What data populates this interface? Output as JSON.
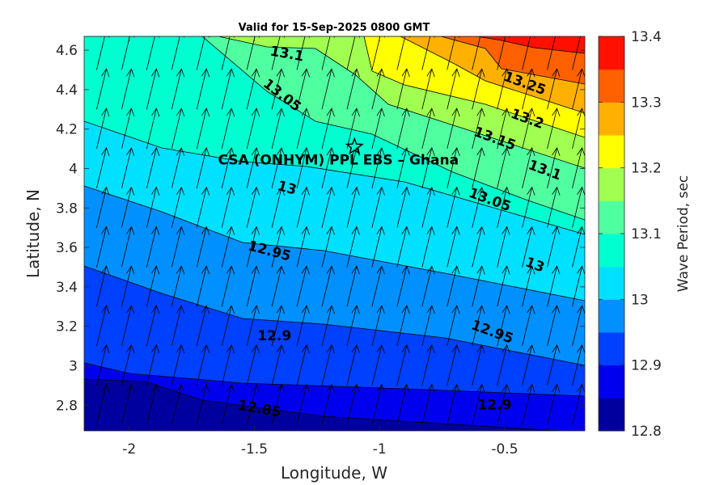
{
  "chart_data": {
    "type": "contour",
    "title": "Valid for 15-Sep-2025 0800 GMT",
    "xlabel": "Longitude, W",
    "ylabel": "Latitude, N",
    "colorbar_label": "Wave Period, sec",
    "xlim": [
      -2.18,
      -0.18
    ],
    "ylim": [
      2.67,
      4.67
    ],
    "x_ticks": [
      -2,
      -1.5,
      -1,
      -0.5
    ],
    "x_tick_labels": [
      "-2",
      "-1.5",
      "-1",
      "-0.5"
    ],
    "y_ticks": [
      2.8,
      3,
      3.2,
      3.4,
      3.6,
      3.8,
      4,
      4.2,
      4.4,
      4.6
    ],
    "y_tick_labels": [
      "2.8",
      "3",
      "3.2",
      "3.4",
      "3.6",
      "3.8",
      "4",
      "4.2",
      "4.4",
      "4.6"
    ],
    "levels": [
      12.8,
      12.85,
      12.9,
      12.95,
      13,
      13.05,
      13.1,
      13.15,
      13.2,
      13.25,
      13.3,
      13.35,
      13.4
    ],
    "colors": [
      "#00009f",
      "#0000ef",
      "#0040ff",
      "#0090ff",
      "#00e0ff",
      "#00ffd0",
      "#50ffa0",
      "#a0ff50",
      "#ffff00",
      "#ffb000",
      "#ff6000",
      "#ff1000",
      "#a00000"
    ],
    "colorbar_ticks": [
      12.8,
      12.9,
      13,
      13.1,
      13.2,
      13.3,
      13.4
    ],
    "colorbar_tick_labels": [
      "12.8",
      "12.9",
      "13",
      "13.1",
      "13.2",
      "13.3",
      "13.4"
    ],
    "contour_labels": [
      {
        "text": "13.1",
        "lon": -1.37,
        "lat": 4.58,
        "angle": 10
      },
      {
        "text": "13.05",
        "lon": -1.39,
        "lat": 4.37,
        "angle": 38
      },
      {
        "text": "13",
        "lon": -1.37,
        "lat": 3.9,
        "angle": 15
      },
      {
        "text": "12.95",
        "lon": -1.44,
        "lat": 3.58,
        "angle": 15
      },
      {
        "text": "12.9",
        "lon": -1.42,
        "lat": 3.15,
        "angle": 0
      },
      {
        "text": "12.85",
        "lon": -1.48,
        "lat": 2.78,
        "angle": 10
      },
      {
        "text": "13.25",
        "lon": -0.42,
        "lat": 4.43,
        "angle": 20
      },
      {
        "text": "13.2",
        "lon": -0.41,
        "lat": 4.25,
        "angle": 20
      },
      {
        "text": "13.15",
        "lon": -0.54,
        "lat": 4.15,
        "angle": 20
      },
      {
        "text": "13.1",
        "lon": -0.34,
        "lat": 3.99,
        "angle": 20
      },
      {
        "text": "13.05",
        "lon": -0.56,
        "lat": 3.84,
        "angle": 20
      },
      {
        "text": "13",
        "lon": -0.38,
        "lat": 3.51,
        "angle": 20
      },
      {
        "text": "12.95",
        "lon": -0.55,
        "lat": 3.17,
        "angle": 20
      },
      {
        "text": "12.9",
        "lon": -0.54,
        "lat": 2.8,
        "angle": 0
      }
    ],
    "site": {
      "label": "CSA (ONHYM) PPL EBS  – Ghana",
      "lon": -1.1,
      "lat": 4.11,
      "marker": "star"
    },
    "vector_field": {
      "description_shown": "wave direction arrows",
      "dx_deg": 0.1,
      "dy_deg": 0.2
    }
  }
}
